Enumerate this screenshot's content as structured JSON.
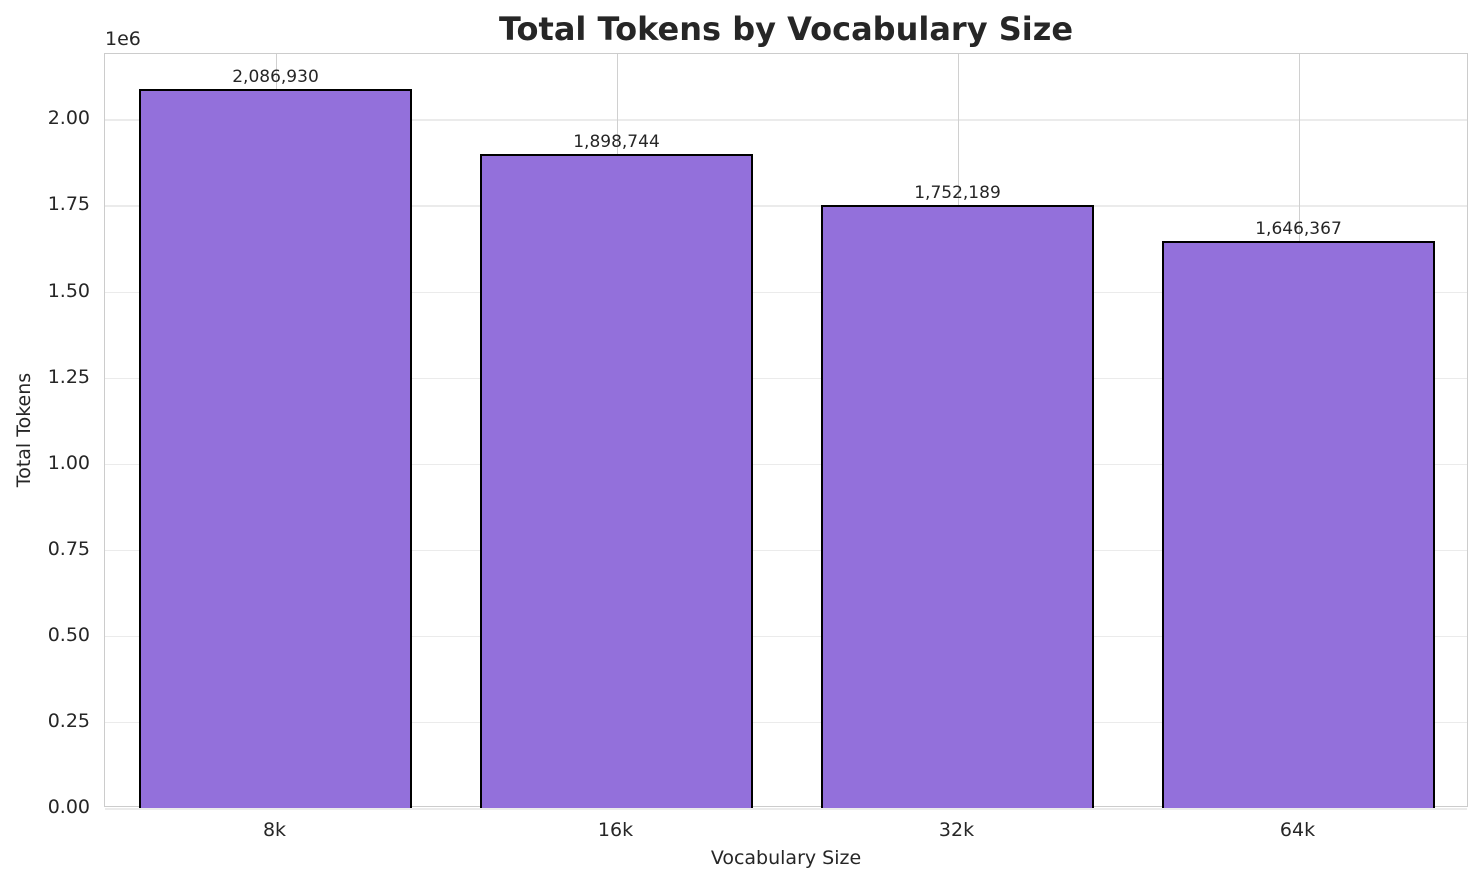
{
  "chart_data": {
    "type": "bar",
    "title": "Total Tokens by Vocabulary Size",
    "xlabel": "Vocabulary Size",
    "ylabel": "Total Tokens",
    "y_offset_label": "1e6",
    "categories": [
      "8k",
      "16k",
      "32k",
      "64k"
    ],
    "values": [
      2086930,
      1898744,
      1752189,
      1646367
    ],
    "value_labels": [
      "2,086,930",
      "1,898,744",
      "1,752,189",
      "1,646,367"
    ],
    "ylim": [
      0,
      2190000
    ],
    "yticks": [
      "0.00",
      "0.25",
      "0.50",
      "0.75",
      "1.00",
      "1.25",
      "1.50",
      "1.75",
      "2.00"
    ],
    "grid": true,
    "bar_color": "#9370db",
    "edge_color": "#000000"
  }
}
